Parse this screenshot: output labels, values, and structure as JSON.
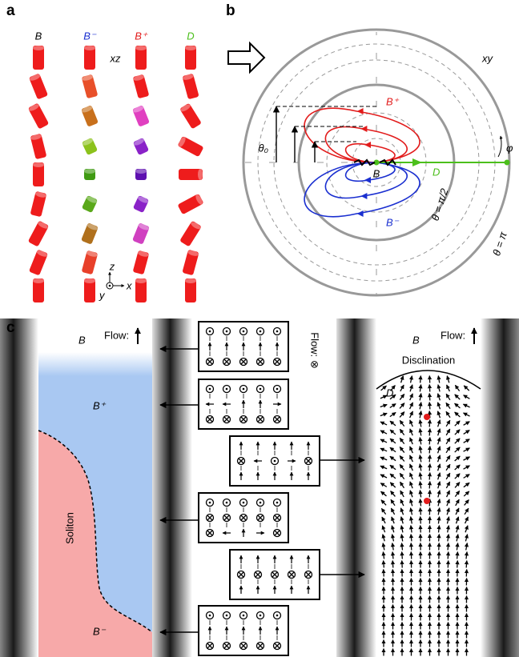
{
  "panel_a": {
    "label": "a",
    "columns": [
      "B",
      "B⁻",
      "B⁺",
      "D"
    ],
    "plane": "xz",
    "axes": {
      "z": "z",
      "x": "x",
      "y": "y"
    }
  },
  "panel_b": {
    "label": "b",
    "plane": "xy",
    "labels": {
      "b_plus": "B⁺",
      "b": "B",
      "d": "D",
      "b_minus": "B⁻",
      "theta0": "θ₀",
      "phi": "φ",
      "theta_half": "θ = π/2",
      "theta_pi": "θ = π"
    }
  },
  "panel_c": {
    "label": "c",
    "left": {
      "b": "B",
      "flow": "Flow:",
      "b_plus": "B⁺",
      "soliton": "Soliton",
      "b_minus": "B⁻"
    },
    "middle": {
      "flow": "Flow: ⊗"
    },
    "right": {
      "b": "B",
      "flow": "Flow:",
      "disclination": "Disclination",
      "d": "D"
    }
  }
}
